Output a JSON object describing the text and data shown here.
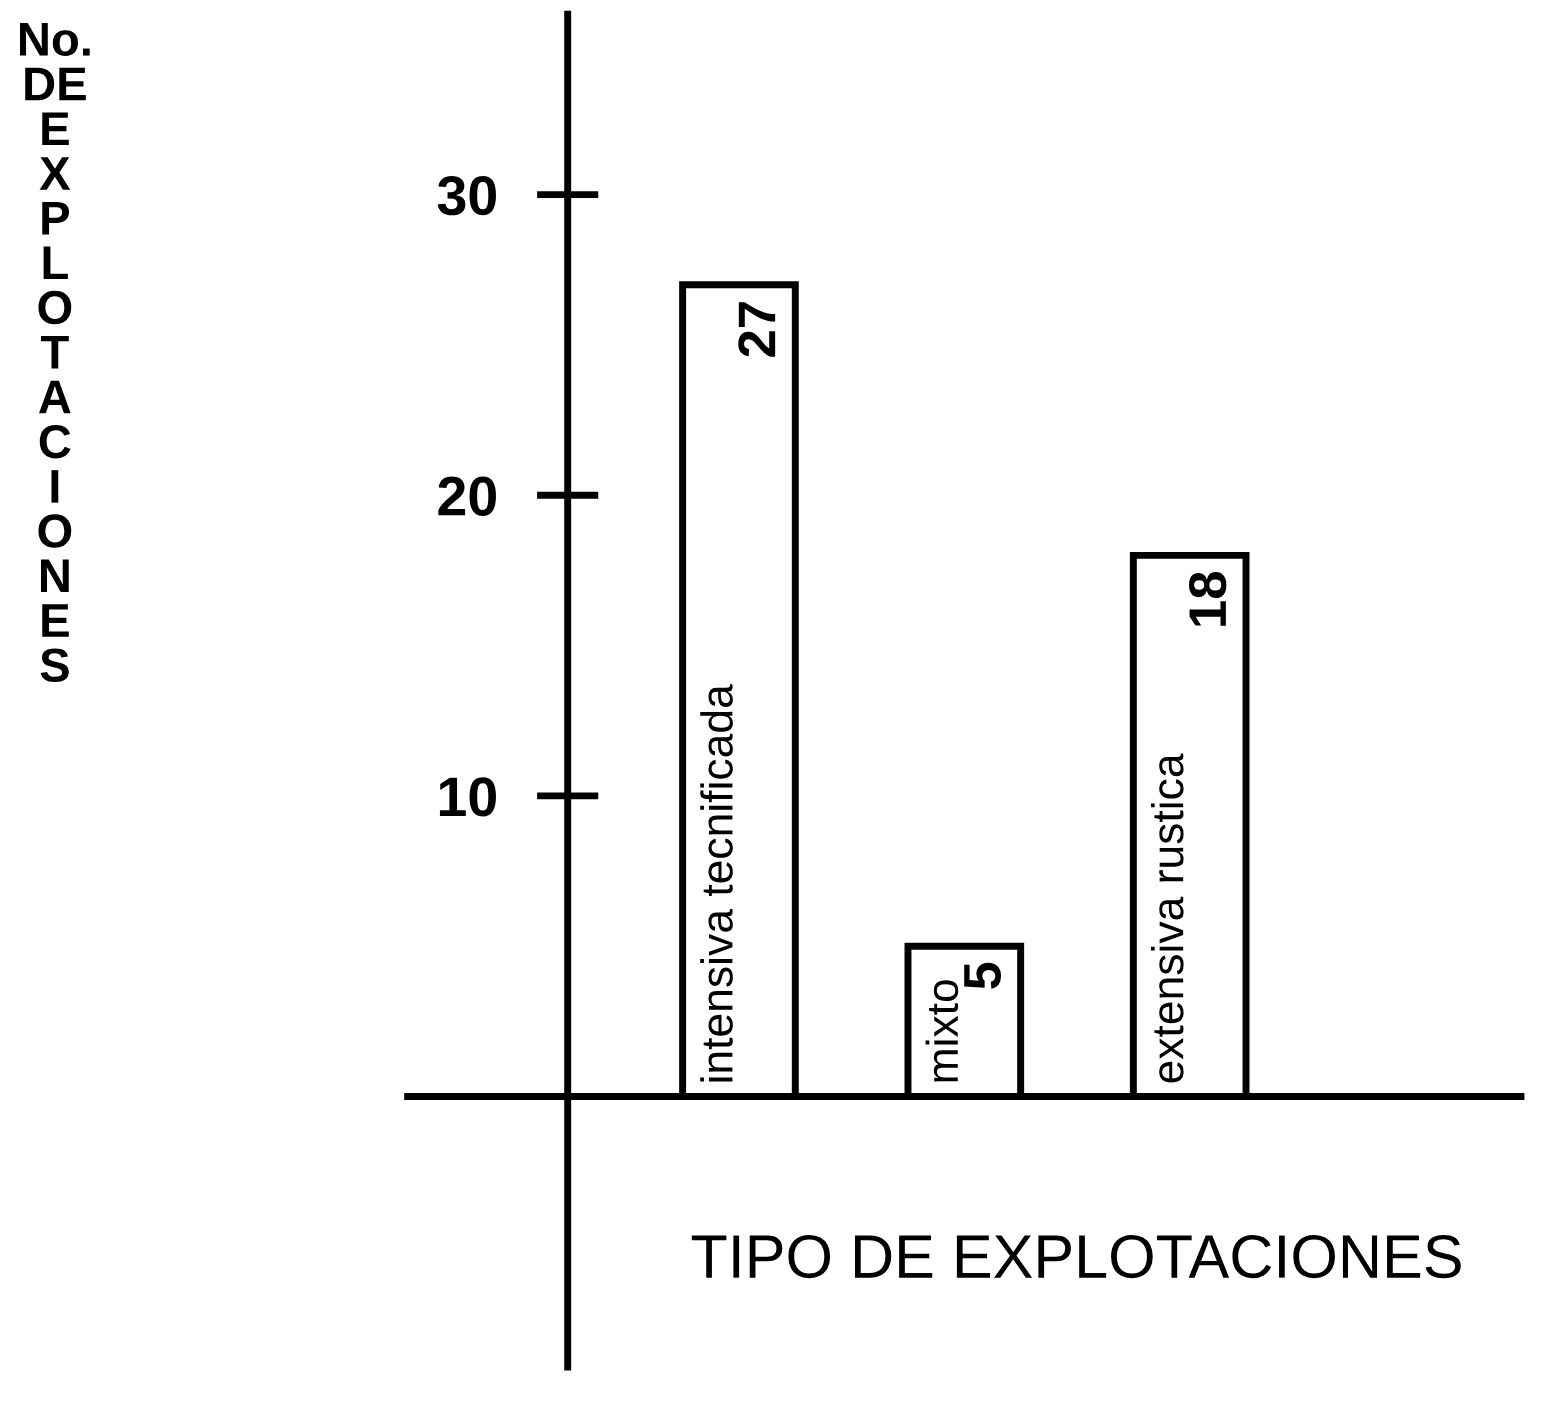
{
  "chart_data": {
    "type": "bar",
    "xlabel": "TIPO DE EXPLOTACIONES",
    "ylabel": "No. DE EXPLOTACIONES",
    "categories": [
      "intensiva tecnificada",
      "mixto",
      "extensiva rustica"
    ],
    "values": [
      27,
      5,
      18
    ],
    "color": "#ffffff",
    "ylim": [
      -9,
      36
    ],
    "yticks": [
      10,
      20,
      30
    ],
    "data_labels": true,
    "grid": false
  }
}
